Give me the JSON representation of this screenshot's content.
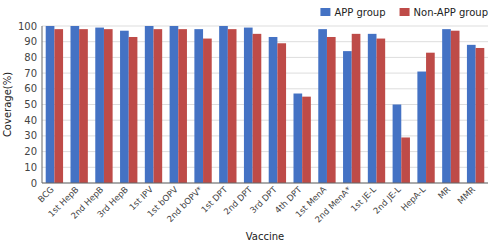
{
  "chart_data": {
    "type": "bar",
    "categories": [
      "BCG",
      "1st HepB",
      "2nd HepB",
      "3rd HepB",
      "1st IPV",
      "1st bOPV",
      "2nd bOPV*",
      "1st DPT",
      "2nd DPT",
      "3rd DPT",
      "4th DPT",
      "1st MenA",
      "2nd MenA*",
      "1st JE-L",
      "2nd JE-L",
      "HepA-L",
      "MR",
      "MMR"
    ],
    "series": [
      {
        "name": "APP group",
        "color": "#4472C4",
        "values": [
          100,
          100,
          99,
          97,
          100,
          100,
          98,
          100,
          99,
          93,
          57,
          98,
          84,
          95,
          50,
          71,
          98,
          88
        ]
      },
      {
        "name": "Non-APP group",
        "color": "#BE4B48",
        "values": [
          98,
          98,
          98,
          93,
          98,
          98,
          92,
          98,
          95,
          89,
          55,
          93,
          95,
          92,
          29,
          83,
          97,
          86
        ]
      }
    ],
    "xlabel": "Vaccine",
    "ylabel": "Coverage(%)",
    "ylim": [
      0,
      100
    ],
    "yticks": [
      0,
      10,
      20,
      30,
      40,
      50,
      60,
      70,
      80,
      90,
      100
    ],
    "grid": true,
    "legend": "upper right"
  }
}
